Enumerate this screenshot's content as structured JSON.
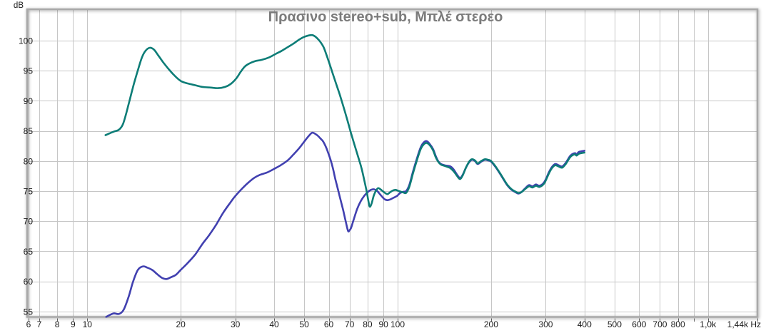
{
  "chart_data": {
    "type": "line",
    "title": "Πρασινο stereo+sub, Μπλέ στερεο",
    "xlabel": "Hz",
    "ylabel": "dB",
    "x_axis": {
      "scale": "log",
      "min": 6.4,
      "max": 1443,
      "unit": "Hz",
      "ticks": [
        {
          "v": 6,
          "label": "6"
        },
        {
          "v": 7,
          "label": "7"
        },
        {
          "v": 8,
          "label": "8"
        },
        {
          "v": 9,
          "label": "9"
        },
        {
          "v": 10,
          "label": "10"
        },
        {
          "v": 20,
          "label": "20"
        },
        {
          "v": 30,
          "label": "30"
        },
        {
          "v": 40,
          "label": "40"
        },
        {
          "v": 50,
          "label": "50"
        },
        {
          "v": 60,
          "label": "60"
        },
        {
          "v": 70,
          "label": "70"
        },
        {
          "v": 80,
          "label": "80"
        },
        {
          "v": 90,
          "label": "90"
        },
        {
          "v": 100,
          "label": "100"
        },
        {
          "v": 200,
          "label": "200"
        },
        {
          "v": 300,
          "label": "300"
        },
        {
          "v": 400,
          "label": "400"
        },
        {
          "v": 500,
          "label": "500"
        },
        {
          "v": 600,
          "label": "600"
        },
        {
          "v": 700,
          "label": "700"
        },
        {
          "v": 800,
          "label": "800"
        },
        {
          "v": 900,
          "label": ""
        },
        {
          "v": 1000,
          "label": "1,0k"
        },
        {
          "v": 1440,
          "label": "1,44k Hz"
        }
      ]
    },
    "y_axis": {
      "unit": "dB",
      "min": 54.1,
      "max": 105.2,
      "ticks": [
        {
          "v": 100,
          "label": "100"
        },
        {
          "v": 95,
          "label": "95"
        },
        {
          "v": 90,
          "label": "90"
        },
        {
          "v": 85,
          "label": "85"
        },
        {
          "v": 80,
          "label": "80"
        },
        {
          "v": 75,
          "label": "75"
        },
        {
          "v": 70,
          "label": "70"
        },
        {
          "v": 65,
          "label": "65"
        },
        {
          "v": 60,
          "label": "60"
        },
        {
          "v": 55,
          "label": "55"
        }
      ]
    },
    "colors": {
      "grid": "#c6c6c6",
      "frame": "#a9a9a9",
      "title": "#7b7b7b",
      "tick": "#666666",
      "stereo_sub": "#0d7d77",
      "stereo": "#4140b0"
    },
    "series": [
      {
        "name": "stereo",
        "color": "#4140b0",
        "points": [
          [
            11.5,
            54.1
          ],
          [
            11.9,
            54.5
          ],
          [
            12.2,
            54.7
          ],
          [
            12.65,
            54.6
          ],
          [
            13.1,
            55.3
          ],
          [
            13.6,
            57.5
          ],
          [
            14.05,
            60.0
          ],
          [
            14.55,
            61.9
          ],
          [
            15.1,
            62.5
          ],
          [
            15.6,
            62.3
          ],
          [
            16.2,
            61.9
          ],
          [
            16.8,
            61.2
          ],
          [
            17.4,
            60.6
          ],
          [
            18.0,
            60.4
          ],
          [
            18.6,
            60.7
          ],
          [
            19.3,
            61.1
          ],
          [
            20.0,
            61.9
          ],
          [
            21.1,
            63.1
          ],
          [
            22.3,
            64.5
          ],
          [
            23.4,
            66.1
          ],
          [
            24.7,
            67.7
          ],
          [
            26.0,
            69.4
          ],
          [
            27.4,
            71.4
          ],
          [
            29.1,
            73.3
          ],
          [
            30.0,
            74.2
          ],
          [
            31.8,
            75.6
          ],
          [
            33.0,
            76.4
          ],
          [
            34.5,
            77.2
          ],
          [
            36.0,
            77.7
          ],
          [
            38.0,
            78.1
          ],
          [
            40.0,
            78.7
          ],
          [
            42.0,
            79.3
          ],
          [
            44.2,
            80.1
          ],
          [
            46.0,
            81.0
          ],
          [
            48.3,
            82.2
          ],
          [
            50.5,
            83.5
          ],
          [
            52.0,
            84.3
          ],
          [
            53.2,
            84.7
          ],
          [
            55.0,
            84.3
          ],
          [
            56.5,
            83.7
          ],
          [
            57.6,
            83.2
          ],
          [
            59.0,
            82.1
          ],
          [
            60.7,
            80.3
          ],
          [
            61.8,
            78.9
          ],
          [
            62.9,
            77.1
          ],
          [
            64.0,
            75.6
          ],
          [
            65.2,
            73.9
          ],
          [
            66.7,
            71.9
          ],
          [
            68.0,
            70.0
          ],
          [
            69.2,
            68.4
          ],
          [
            70.0,
            68.5
          ],
          [
            70.8,
            68.9
          ],
          [
            72.0,
            70.1
          ],
          [
            74.0,
            72.0
          ],
          [
            76.0,
            73.3
          ],
          [
            78.0,
            74.2
          ],
          [
            80.0,
            74.8
          ],
          [
            82.0,
            75.2
          ],
          [
            84.0,
            75.3
          ],
          [
            86.0,
            75.0
          ],
          [
            88.0,
            74.4
          ],
          [
            90.5,
            73.7
          ],
          [
            92.5,
            73.5
          ],
          [
            94.5,
            73.6
          ],
          [
            97.0,
            73.9
          ],
          [
            99.5,
            74.2
          ],
          [
            102.0,
            74.7
          ],
          [
            104.5,
            74.9
          ],
          [
            106.5,
            75.0
          ],
          [
            109.0,
            76.0
          ],
          [
            112.0,
            78.2
          ],
          [
            115.5,
            80.5
          ],
          [
            118.7,
            82.3
          ],
          [
            121.5,
            83.1
          ],
          [
            124.0,
            83.3
          ],
          [
            127.0,
            82.8
          ],
          [
            130.0,
            82.0
          ],
          [
            132.5,
            80.9
          ],
          [
            135.0,
            80.0
          ],
          [
            138.0,
            79.5
          ],
          [
            141.5,
            79.3
          ],
          [
            145.0,
            79.2
          ],
          [
            148.0,
            79.1
          ],
          [
            151.5,
            78.6
          ],
          [
            155.0,
            77.8
          ],
          [
            158.7,
            77.2
          ],
          [
            162.0,
            77.7
          ],
          [
            166.0,
            78.9
          ],
          [
            170.0,
            79.8
          ],
          [
            173.5,
            80.2
          ],
          [
            177.5,
            80.0
          ],
          [
            181.0,
            79.5
          ],
          [
            186.0,
            79.9
          ],
          [
            191.0,
            80.2
          ],
          [
            195.5,
            80.1
          ],
          [
            200.0,
            79.9
          ],
          [
            206.0,
            79.1
          ],
          [
            212.4,
            78.1
          ],
          [
            219.0,
            77.0
          ],
          [
            226.0,
            75.9
          ],
          [
            233.0,
            75.2
          ],
          [
            240.0,
            74.8
          ],
          [
            244.6,
            74.6
          ],
          [
            250.0,
            74.8
          ],
          [
            257.0,
            75.4
          ],
          [
            264.8,
            76.0
          ],
          [
            271.8,
            75.8
          ],
          [
            279.0,
            76.1
          ],
          [
            286.6,
            75.9
          ],
          [
            296.8,
            76.5
          ],
          [
            307.6,
            78.2
          ],
          [
            315.0,
            79.1
          ],
          [
            322.0,
            79.5
          ],
          [
            330.0,
            79.3
          ],
          [
            339.0,
            79.1
          ],
          [
            348.0,
            79.7
          ],
          [
            355.0,
            80.4
          ],
          [
            360.4,
            80.9
          ],
          [
            367.0,
            81.2
          ],
          [
            373.4,
            81.3
          ],
          [
            377.0,
            81.1
          ],
          [
            383.4,
            81.5
          ],
          [
            390.0,
            81.6
          ],
          [
            400.0,
            81.7
          ]
        ]
      },
      {
        "name": "stereo+sub",
        "color": "#0d7d77",
        "points": [
          [
            11.45,
            84.3
          ],
          [
            11.8,
            84.6
          ],
          [
            12.2,
            84.9
          ],
          [
            12.65,
            85.2
          ],
          [
            13.0,
            86.0
          ],
          [
            13.3,
            87.6
          ],
          [
            13.6,
            89.5
          ],
          [
            13.9,
            91.4
          ],
          [
            14.2,
            93.2
          ],
          [
            14.6,
            95.3
          ],
          [
            15.0,
            97.2
          ],
          [
            15.4,
            98.3
          ],
          [
            15.9,
            98.8
          ],
          [
            16.4,
            98.5
          ],
          [
            16.9,
            97.6
          ],
          [
            17.5,
            96.5
          ],
          [
            18.2,
            95.4
          ],
          [
            19.0,
            94.3
          ],
          [
            20.0,
            93.3
          ],
          [
            21.0,
            92.9
          ],
          [
            22.2,
            92.6
          ],
          [
            23.5,
            92.3
          ],
          [
            25.0,
            92.2
          ],
          [
            26.4,
            92.1
          ],
          [
            27.8,
            92.3
          ],
          [
            29.0,
            92.8
          ],
          [
            30.2,
            93.7
          ],
          [
            31.2,
            94.8
          ],
          [
            32.2,
            95.7
          ],
          [
            33.3,
            96.2
          ],
          [
            34.8,
            96.6
          ],
          [
            36.5,
            96.8
          ],
          [
            38.5,
            97.2
          ],
          [
            40.5,
            97.8
          ],
          [
            42.3,
            98.3
          ],
          [
            44.2,
            98.9
          ],
          [
            46.2,
            99.5
          ],
          [
            48.3,
            100.2
          ],
          [
            50.5,
            100.7
          ],
          [
            53.2,
            100.9
          ],
          [
            55.5,
            100.2
          ],
          [
            57.6,
            99.0
          ],
          [
            59.1,
            97.5
          ],
          [
            61.0,
            95.4
          ],
          [
            62.9,
            93.3
          ],
          [
            65.2,
            90.9
          ],
          [
            67.0,
            88.9
          ],
          [
            68.7,
            87.0
          ],
          [
            70.5,
            84.9
          ],
          [
            72.4,
            82.9
          ],
          [
            75.0,
            80.3
          ],
          [
            76.5,
            78.8
          ],
          [
            78.0,
            76.9
          ],
          [
            79.5,
            74.9
          ],
          [
            80.8,
            72.9
          ],
          [
            81.5,
            72.4
          ],
          [
            82.5,
            73.0
          ],
          [
            83.7,
            74.2
          ],
          [
            85.0,
            75.0
          ],
          [
            86.5,
            75.5
          ],
          [
            88.0,
            75.3
          ],
          [
            90.0,
            74.9
          ],
          [
            92.5,
            74.5
          ],
          [
            94.5,
            74.8
          ],
          [
            96.5,
            75.1
          ],
          [
            98.5,
            75.2
          ],
          [
            101.0,
            75.0
          ],
          [
            104.0,
            74.8
          ],
          [
            106.5,
            74.7
          ],
          [
            109.0,
            75.7
          ],
          [
            112.0,
            77.9
          ],
          [
            115.5,
            80.2
          ],
          [
            118.7,
            82.0
          ],
          [
            121.5,
            82.8
          ],
          [
            124.0,
            83.0
          ],
          [
            127.0,
            82.6
          ],
          [
            130.0,
            81.8
          ],
          [
            132.5,
            80.7
          ],
          [
            135.0,
            79.9
          ],
          [
            138.0,
            79.4
          ],
          [
            141.5,
            79.2
          ],
          [
            145.0,
            79.0
          ],
          [
            148.0,
            78.8
          ],
          [
            151.5,
            78.3
          ],
          [
            155.0,
            77.6
          ],
          [
            158.7,
            77.0
          ],
          [
            162.0,
            77.6
          ],
          [
            166.0,
            78.9
          ],
          [
            170.0,
            79.9
          ],
          [
            173.5,
            80.3
          ],
          [
            177.5,
            80.1
          ],
          [
            181.0,
            79.6
          ],
          [
            186.0,
            80.0
          ],
          [
            191.0,
            80.3
          ],
          [
            195.5,
            80.2
          ],
          [
            200.0,
            80.0
          ],
          [
            206.0,
            79.2
          ],
          [
            212.4,
            78.2
          ],
          [
            219.0,
            77.1
          ],
          [
            226.0,
            76.0
          ],
          [
            233.0,
            75.3
          ],
          [
            240.0,
            74.9
          ],
          [
            244.6,
            74.7
          ],
          [
            250.0,
            74.8
          ],
          [
            257.0,
            75.3
          ],
          [
            264.8,
            75.8
          ],
          [
            271.8,
            75.6
          ],
          [
            279.0,
            75.9
          ],
          [
            286.6,
            75.7
          ],
          [
            296.8,
            76.3
          ],
          [
            307.6,
            78.0
          ],
          [
            315.0,
            78.9
          ],
          [
            322.0,
            79.3
          ],
          [
            330.0,
            79.1
          ],
          [
            339.0,
            78.9
          ],
          [
            348.0,
            79.5
          ],
          [
            355.0,
            80.2
          ],
          [
            360.4,
            80.7
          ],
          [
            367.0,
            81.0
          ],
          [
            373.4,
            81.1
          ],
          [
            377.0,
            80.9
          ],
          [
            383.4,
            81.2
          ],
          [
            390.0,
            81.3
          ],
          [
            400.0,
            81.4
          ]
        ]
      }
    ]
  }
}
